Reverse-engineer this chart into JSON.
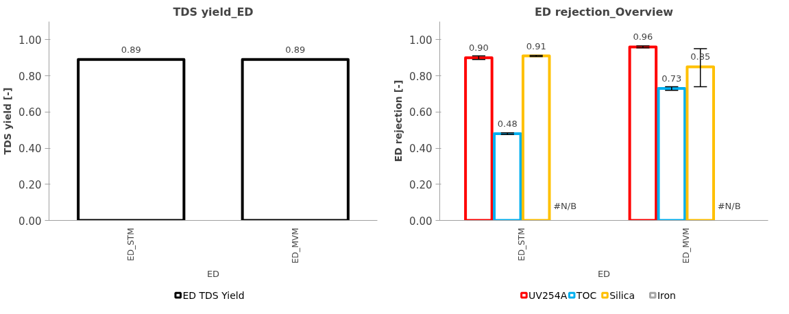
{
  "chart_data": [
    {
      "type": "bar",
      "title": "TDS yield_ED",
      "ylabel": "TDS yield [-]",
      "xlabel": "ED",
      "categories": [
        "ED_STM",
        "ED_MVM"
      ],
      "ylim": [
        0,
        1.1
      ],
      "yticks": [
        {
          "value": 0,
          "label": "0.00"
        },
        {
          "value": 0.2,
          "label": "0.20"
        },
        {
          "value": 0.4,
          "label": "0.40"
        },
        {
          "value": 0.6,
          "label": "0.60"
        },
        {
          "value": 0.8,
          "label": "0.80"
        },
        {
          "value": 1,
          "label": "1.00"
        }
      ],
      "grid": false,
      "legend": "bottom",
      "series": [
        {
          "name": "ED TDS Yield",
          "color": "#000000",
          "values": [
            0.89,
            0.89
          ],
          "value_labels": [
            "0.89",
            "0.89"
          ]
        }
      ]
    },
    {
      "type": "bar",
      "title": "ED rejection_Overview",
      "ylabel": "ED rejection [-]",
      "xlabel": "ED",
      "categories": [
        "ED_STM",
        "ED_MVM"
      ],
      "ylim": [
        0,
        1.1
      ],
      "yticks": [
        {
          "value": 0,
          "label": "0.00"
        },
        {
          "value": 0.2,
          "label": "0.20"
        },
        {
          "value": 0.4,
          "label": "0.40"
        },
        {
          "value": 0.6,
          "label": "0.60"
        },
        {
          "value": 0.8,
          "label": "0.80"
        },
        {
          "value": 1,
          "label": "1.00"
        }
      ],
      "grid": false,
      "legend": "bottom",
      "series": [
        {
          "name": "UV254A",
          "color": "#ff0000",
          "values": [
            0.9,
            0.96
          ],
          "errors": [
            0.01,
            0.005
          ],
          "value_labels": [
            "0.90",
            "0.96"
          ]
        },
        {
          "name": "TOC",
          "color": "#00b0f0",
          "values": [
            0.48,
            0.73
          ],
          "errors": [
            0.005,
            0.01
          ],
          "value_labels": [
            "0.48",
            "0.73"
          ]
        },
        {
          "name": "Silica",
          "color": "#ffc000",
          "values": [
            0.91,
            0.85
          ],
          "errors": [
            0.003,
            [
              0.74,
              0.95
            ]
          ],
          "value_labels": [
            "0.91",
            "0.85"
          ]
        },
        {
          "name": "Iron",
          "color": "#a6a6a6",
          "values": [
            null,
            null
          ],
          "value_labels": [
            "#N/B",
            "#N/B"
          ]
        }
      ]
    }
  ]
}
